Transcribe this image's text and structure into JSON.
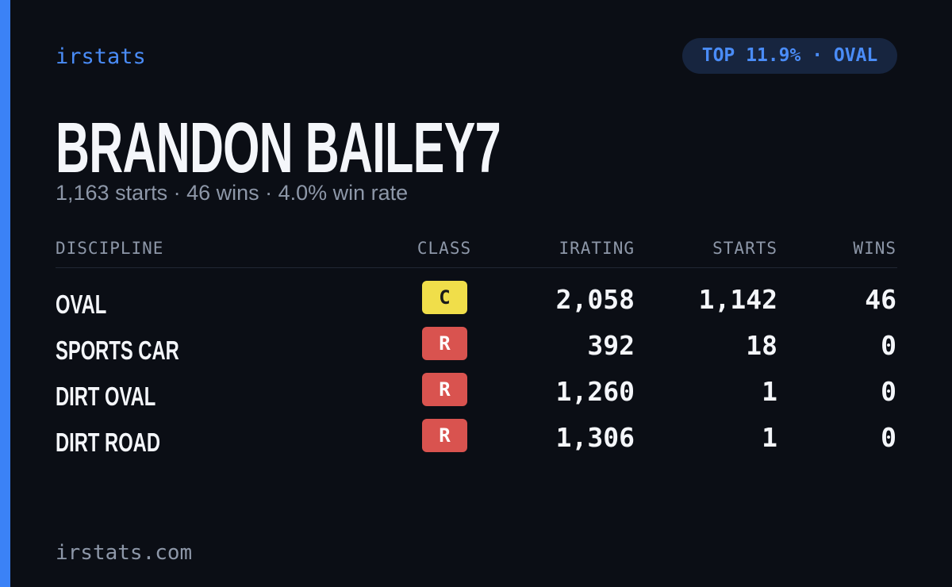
{
  "header": {
    "brand": "irstats",
    "badge": "TOP 11.9% · OVAL"
  },
  "profile": {
    "name": "BRANDON BAILEY7",
    "summary": "1,163 starts · 46 wins · 4.0% win rate"
  },
  "table": {
    "columns": [
      "DISCIPLINE",
      "CLASS",
      "IRATING",
      "STARTS",
      "WINS"
    ],
    "rows": [
      {
        "discipline": "OVAL",
        "class": "C",
        "class_color": "#f0de4a",
        "class_text_color": "#1a1a1a",
        "irating": "2,058",
        "starts": "1,142",
        "wins": "46"
      },
      {
        "discipline": "SPORTS CAR",
        "class": "R",
        "class_color": "#d9534f",
        "class_text_color": "#ffffff",
        "irating": "392",
        "starts": "18",
        "wins": "0"
      },
      {
        "discipline": "DIRT OVAL",
        "class": "R",
        "class_color": "#d9534f",
        "class_text_color": "#ffffff",
        "irating": "1,260",
        "starts": "1",
        "wins": "0"
      },
      {
        "discipline": "DIRT ROAD",
        "class": "R",
        "class_color": "#d9534f",
        "class_text_color": "#ffffff",
        "irating": "1,306",
        "starts": "1",
        "wins": "0"
      }
    ]
  },
  "footer": {
    "site": "irstats.com"
  }
}
